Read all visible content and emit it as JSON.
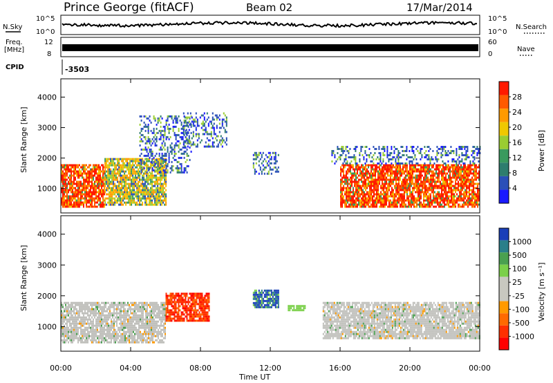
{
  "header": {
    "station": "Prince George (fitACF)",
    "beam": "Beam 02",
    "date": "17/Mar/2014"
  },
  "top_panels": {
    "nsky_label": "N.Sky",
    "nsky_ticks": [
      "10^5",
      "10^0"
    ],
    "nsearch_label": "N.Search",
    "nsearch_ticks": [
      "10^5",
      "10^0"
    ],
    "freq_label": "Freq.",
    "freq_unit": "[MHz]",
    "freq_ticks": [
      "12",
      "8"
    ],
    "nave_label": "Nave",
    "nave_ticks": [
      "60",
      "0"
    ],
    "cpid_label": "CPID",
    "cpid_value": "-3503"
  },
  "colors": {
    "power": [
      "#1a1aff",
      "#2a4fb8",
      "#2e7d6e",
      "#3a9a5e",
      "#9acd32",
      "#f0c800",
      "#ff9a00",
      "#ff5a00",
      "#ff1a00"
    ],
    "velocity": [
      "#1a3fb8",
      "#2a7f8a",
      "#4aa050",
      "#7bd04a",
      "#c8c8c0",
      "#c8c8c0",
      "#ff9a00",
      "#ff6a00",
      "#ff3000",
      "#ff0000"
    ],
    "ground_scatter": "#c0c0bc"
  },
  "chart_data": [
    {
      "type": "heatmap",
      "title": "Power",
      "ylabel": "Slant Range [km]",
      "xlabel": "Time UT",
      "xlim": [
        0,
        24
      ],
      "ylim": [
        200,
        4600
      ],
      "y_ticks": [
        "1000",
        "2000",
        "3000",
        "4000"
      ],
      "x_ticks": [
        "00:00",
        "04:00",
        "08:00",
        "12:00",
        "16:00",
        "20:00",
        "00:00"
      ],
      "colorbar_label": "Power [dB]",
      "colorbar_ticks": [
        "28",
        "24",
        "20",
        "16",
        "12",
        "8",
        "4"
      ],
      "regions": [
        {
          "t0": 0.0,
          "t1": 2.5,
          "r0": 400,
          "r1": 1800,
          "level": "high"
        },
        {
          "t0": 2.5,
          "t1": 6.0,
          "r0": 500,
          "r1": 2000,
          "level": "mid"
        },
        {
          "t0": 4.5,
          "t1": 7.5,
          "r0": 1500,
          "r1": 3400,
          "level": "low"
        },
        {
          "t0": 7.0,
          "t1": 9.5,
          "r0": 2400,
          "r1": 3500,
          "level": "low"
        },
        {
          "t0": 11.0,
          "t1": 12.5,
          "r0": 1500,
          "r1": 2200,
          "level": "low"
        },
        {
          "t0": 16.0,
          "t1": 24.0,
          "r0": 400,
          "r1": 1800,
          "level": "high"
        },
        {
          "t0": 15.5,
          "t1": 24.0,
          "r0": 1800,
          "r1": 2400,
          "level": "low"
        }
      ]
    },
    {
      "type": "heatmap",
      "title": "Velocity",
      "ylabel": "Slant Range [km]",
      "xlabel": "Time UT",
      "xlim": [
        0,
        24
      ],
      "ylim": [
        200,
        4600
      ],
      "y_ticks": [
        "1000",
        "2000",
        "3000",
        "4000"
      ],
      "x_ticks": [
        "00:00",
        "04:00",
        "08:00",
        "12:00",
        "16:00",
        "20:00",
        "00:00"
      ],
      "colorbar_label": "Velocity [m s⁻¹]",
      "colorbar_ticks": [
        "1000",
        "500",
        "100",
        "25",
        "-25",
        "-100",
        "-500",
        "-1000"
      ],
      "regions": [
        {
          "t0": 0.0,
          "t1": 6.0,
          "r0": 500,
          "r1": 1800,
          "level": "ground"
        },
        {
          "t0": 6.0,
          "t1": 8.5,
          "r0": 1200,
          "r1": 2100,
          "level": "neg"
        },
        {
          "t0": 11.0,
          "t1": 12.5,
          "r0": 1600,
          "r1": 2200,
          "level": "pos"
        },
        {
          "t0": 13.0,
          "t1": 14.0,
          "r0": 1500,
          "r1": 1700,
          "level": "posweak"
        },
        {
          "t0": 15.0,
          "t1": 24.0,
          "r0": 600,
          "r1": 1800,
          "level": "ground"
        }
      ]
    }
  ]
}
